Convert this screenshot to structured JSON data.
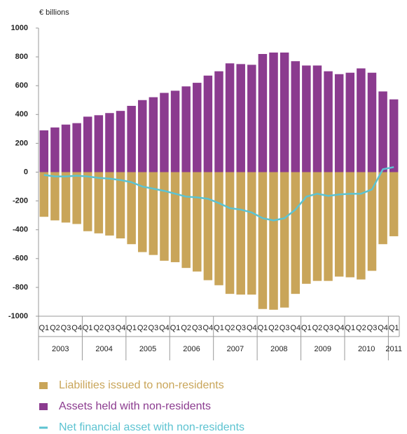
{
  "chart_data": {
    "type": "bar",
    "y_unit_label": "€ billions",
    "categories": [
      "Q1",
      "Q2",
      "Q3",
      "Q4",
      "Q1",
      "Q2",
      "Q3",
      "Q4",
      "Q1",
      "Q2",
      "Q3",
      "Q4",
      "Q1",
      "Q2",
      "Q3",
      "Q4",
      "Q1",
      "Q2",
      "Q3",
      "Q4",
      "Q1",
      "Q2",
      "Q3",
      "Q4",
      "Q1",
      "Q2",
      "Q3",
      "Q4",
      "Q1",
      "Q2",
      "Q3",
      "Q4",
      "Q1"
    ],
    "year_labels": [
      "2003",
      "2004",
      "2005",
      "2006",
      "2007",
      "2008",
      "2009",
      "2010",
      "2011"
    ],
    "ylim": [
      -1000,
      1000
    ],
    "yticks": [
      1000,
      800,
      600,
      400,
      200,
      0,
      -200,
      -400,
      -600,
      -800,
      -1000
    ],
    "series": [
      {
        "name": "Liabilities issued to non-residents",
        "type": "bar",
        "color": "#c9a559",
        "values": [
          -310,
          -335,
          -350,
          -360,
          -410,
          -425,
          -440,
          -460,
          -500,
          -555,
          -575,
          -615,
          -625,
          -665,
          -690,
          -750,
          -785,
          -845,
          -850,
          -850,
          -950,
          -955,
          -940,
          -845,
          -775,
          -755,
          -755,
          -725,
          -730,
          -745,
          -685,
          -500,
          -445
        ]
      },
      {
        "name": "Assets held with non-residents",
        "type": "bar",
        "color": "#8b3b8f",
        "values": [
          290,
          310,
          330,
          340,
          385,
          395,
          410,
          425,
          460,
          500,
          520,
          550,
          565,
          595,
          620,
          670,
          700,
          755,
          750,
          745,
          820,
          830,
          830,
          770,
          740,
          740,
          700,
          680,
          690,
          720,
          690,
          560,
          505
        ]
      },
      {
        "name": "Net financial asset with non-residents",
        "type": "line",
        "color": "#5cc3d1",
        "values": [
          -20,
          -30,
          -30,
          -25,
          -30,
          -40,
          -45,
          -55,
          -70,
          -100,
          -115,
          -130,
          -150,
          -170,
          -175,
          -185,
          -215,
          -250,
          -260,
          -280,
          -320,
          -335,
          -320,
          -260,
          -170,
          -150,
          -165,
          -155,
          -150,
          -150,
          -120,
          20,
          35
        ]
      }
    ]
  }
}
